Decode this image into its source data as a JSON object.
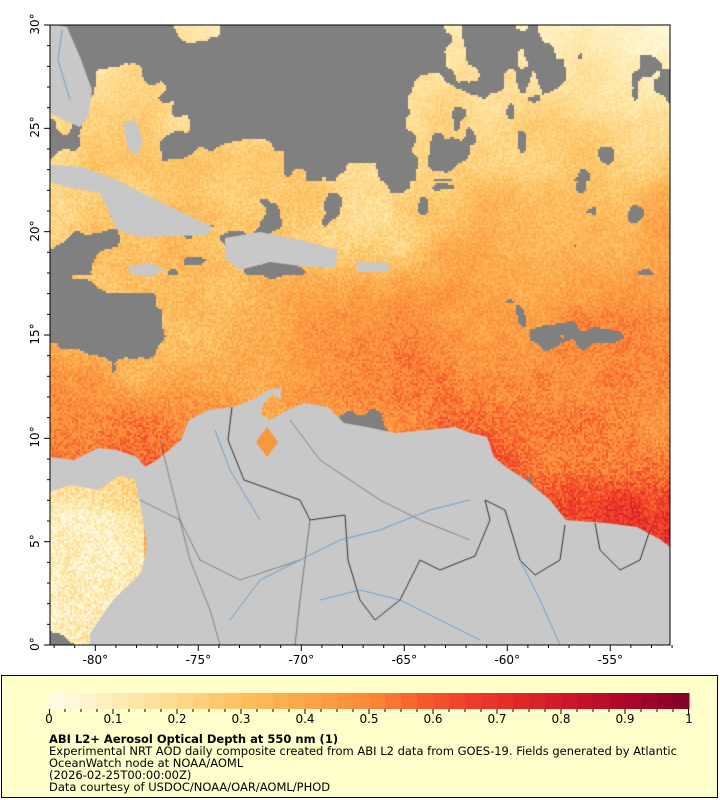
{
  "map": {
    "lat_range": [
      0,
      30
    ],
    "lon_range": [
      -82.2,
      -52.1
    ],
    "y_ticks": [
      {
        "value": 0,
        "label": "0°"
      },
      {
        "value": 5,
        "label": "5°"
      },
      {
        "value": 10,
        "label": "10°"
      },
      {
        "value": 15,
        "label": "15°"
      },
      {
        "value": 20,
        "label": "20°"
      },
      {
        "value": 25,
        "label": "25°"
      },
      {
        "value": 30,
        "label": "30°"
      }
    ],
    "x_ticks": [
      {
        "value": -80,
        "label": "-80°"
      },
      {
        "value": -75,
        "label": "-75°"
      },
      {
        "value": -70,
        "label": "-70°"
      },
      {
        "value": -65,
        "label": "-65°"
      },
      {
        "value": -60,
        "label": "-60°"
      },
      {
        "value": -55,
        "label": "-55°"
      }
    ],
    "colors": {
      "land": "#c8c8c8",
      "no_data": "#808080",
      "rivers": "#6699cc",
      "borders": "#555555"
    }
  },
  "legend": {
    "colorbar": {
      "min": 0,
      "max": 1,
      "labels": [
        "0",
        "0.1",
        "0.2",
        "0.3",
        "0.4",
        "0.5",
        "0.6",
        "0.7",
        "0.8",
        "0.9",
        "1"
      ],
      "colormap": [
        "#fffce8",
        "#feeeb8",
        "#fed98a",
        "#fdc060",
        "#fca54a",
        "#fb8a3a",
        "#f5532a",
        "#e8302a",
        "#d0182a",
        "#b0062a",
        "#800026"
      ]
    },
    "title": "ABI L2+ Aerosol Optical Depth at 550 nm (1)",
    "line1": "Experimental NRT AOD daily composite created from ABI L2 data from GOES-19. Fields generated by Atlantic",
    "line2": "OceanWatch node at NOAA/AOML",
    "line3": "(2026-02-25T00:00:00Z)",
    "line4": "Data courtesy of USDOC/NOAA/OAR/AOML/PHOD"
  }
}
